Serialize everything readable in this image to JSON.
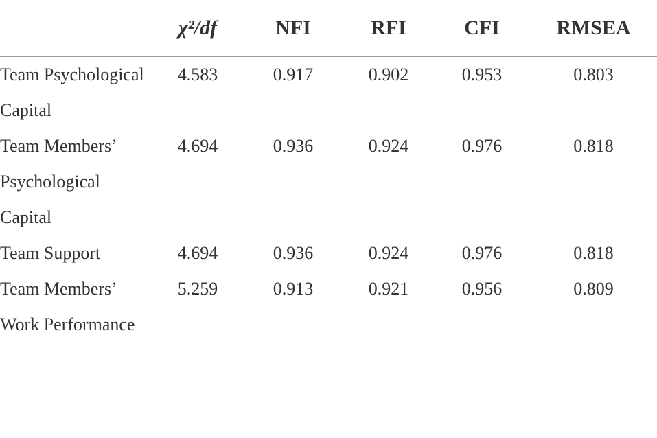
{
  "table": {
    "header": [
      "",
      "χ²/df",
      "NFI",
      "RFI",
      "CFI",
      "RMSEA"
    ],
    "rows": [
      [
        "Team Psychological Capital",
        "4.583",
        "0.917",
        "0.902",
        "0.953",
        "0.803"
      ],
      [
        "Team Members’ Psychological Capital",
        "4.694",
        "0.936",
        "0.924",
        "0.976",
        "0.818"
      ],
      [
        "Team Support",
        "4.694",
        "0.936",
        "0.924",
        "0.976",
        "0.818"
      ],
      [
        "Team Members’ Work Performance",
        "5.259",
        "0.913",
        "0.921",
        "0.956",
        "0.809"
      ]
    ]
  }
}
